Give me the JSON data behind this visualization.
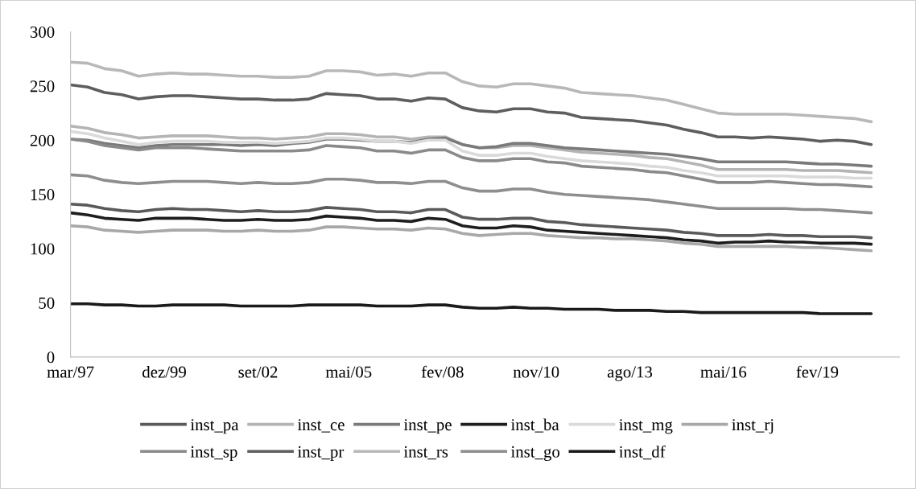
{
  "chart_data": {
    "type": "line",
    "x": [
      "1997-03",
      "1997-09",
      "1998-03",
      "1998-09",
      "1999-03",
      "1999-09",
      "2000-03",
      "2000-09",
      "2001-03",
      "2001-09",
      "2002-03",
      "2002-09",
      "2003-03",
      "2003-09",
      "2004-03",
      "2004-09",
      "2005-03",
      "2005-09",
      "2006-03",
      "2006-09",
      "2007-03",
      "2007-09",
      "2008-03",
      "2008-09",
      "2009-03",
      "2009-09",
      "2010-03",
      "2010-09",
      "2011-03",
      "2011-09",
      "2012-03",
      "2012-09",
      "2013-03",
      "2013-09",
      "2014-03",
      "2014-09",
      "2015-03",
      "2015-09",
      "2016-03",
      "2016-09",
      "2017-03",
      "2017-09",
      "2018-03",
      "2018-09",
      "2019-03",
      "2019-09",
      "2020-03",
      "2020-09"
    ],
    "xlim": [
      "1997-03",
      "2021-07"
    ],
    "xticks": [
      {
        "value": "1997-03",
        "label": "mar/97"
      },
      {
        "value": "1999-12",
        "label": "dez/99"
      },
      {
        "value": "2002-09",
        "label": "set/02"
      },
      {
        "value": "2005-05",
        "label": "mai/05"
      },
      {
        "value": "2008-02",
        "label": "fev/08"
      },
      {
        "value": "2010-11",
        "label": "nov/10"
      },
      {
        "value": "2013-08",
        "label": "ago/13"
      },
      {
        "value": "2016-05",
        "label": "mai/16"
      },
      {
        "value": "2019-02",
        "label": "fev/19"
      }
    ],
    "ylim": [
      0,
      300
    ],
    "yticks": [
      0,
      50,
      100,
      150,
      200,
      250,
      300
    ],
    "grid": false,
    "legend": "bottom",
    "marker": "none",
    "line_style": "solid",
    "series": [
      {
        "name": "inst_pa",
        "color": "#5a5a5a",
        "values": [
          141,
          140,
          137,
          135,
          134,
          136,
          137,
          136,
          136,
          135,
          134,
          135,
          134,
          134,
          135,
          138,
          137,
          136,
          134,
          134,
          133,
          136,
          136,
          129,
          127,
          127,
          128,
          128,
          125,
          124,
          122,
          121,
          120,
          119,
          118,
          117,
          115,
          114,
          112,
          112,
          112,
          113,
          112,
          112,
          111,
          111,
          111,
          110
        ]
      },
      {
        "name": "inst_ce",
        "color": "#b4b4b4",
        "values": [
          213,
          211,
          207,
          205,
          202,
          203,
          204,
          204,
          204,
          203,
          202,
          202,
          201,
          202,
          203,
          206,
          206,
          205,
          203,
          203,
          201,
          203,
          203,
          196,
          193,
          193,
          195,
          195,
          193,
          191,
          189,
          188,
          187,
          186,
          184,
          183,
          180,
          177,
          173,
          173,
          173,
          173,
          173,
          172,
          172,
          172,
          171,
          170
        ]
      },
      {
        "name": "inst_pe",
        "color": "#7a7a7a",
        "values": [
          201,
          200,
          197,
          195,
          193,
          195,
          196,
          196,
          196,
          196,
          195,
          196,
          195,
          197,
          198,
          201,
          201,
          200,
          199,
          199,
          198,
          201,
          202,
          196,
          193,
          194,
          197,
          197,
          195,
          193,
          192,
          191,
          190,
          189,
          188,
          187,
          185,
          183,
          180,
          180,
          180,
          180,
          180,
          179,
          178,
          178,
          177,
          176
        ]
      },
      {
        "name": "inst_ba",
        "color": "#1e1e1e",
        "values": [
          133,
          131,
          128,
          127,
          126,
          128,
          128,
          128,
          127,
          126,
          126,
          127,
          126,
          126,
          127,
          130,
          129,
          128,
          126,
          126,
          125,
          128,
          127,
          121,
          119,
          119,
          121,
          120,
          117,
          116,
          115,
          114,
          113,
          112,
          111,
          110,
          108,
          107,
          105,
          106,
          106,
          107,
          106,
          106,
          105,
          105,
          105,
          104
        ]
      },
      {
        "name": "inst_mg",
        "color": "#dadada",
        "values": [
          208,
          206,
          202,
          199,
          196,
          198,
          199,
          199,
          199,
          198,
          198,
          198,
          197,
          198,
          199,
          202,
          202,
          201,
          199,
          199,
          197,
          200,
          200,
          190,
          186,
          186,
          188,
          188,
          185,
          183,
          181,
          180,
          179,
          178,
          176,
          175,
          172,
          170,
          167,
          167,
          167,
          167,
          167,
          166,
          166,
          166,
          165,
          165
        ]
      },
      {
        "name": "inst_rj",
        "color": "#a8a8a8",
        "values": [
          121,
          120,
          117,
          116,
          115,
          116,
          117,
          117,
          117,
          116,
          116,
          117,
          116,
          116,
          117,
          120,
          120,
          119,
          118,
          118,
          117,
          119,
          118,
          114,
          112,
          113,
          114,
          114,
          112,
          111,
          110,
          110,
          109,
          109,
          108,
          107,
          105,
          104,
          102,
          102,
          102,
          102,
          102,
          101,
          101,
          100,
          99,
          98
        ]
      },
      {
        "name": "inst_sp",
        "color": "#8a8a8a",
        "values": [
          201,
          199,
          195,
          193,
          191,
          193,
          193,
          193,
          192,
          191,
          190,
          190,
          190,
          190,
          191,
          195,
          194,
          193,
          190,
          190,
          188,
          191,
          191,
          184,
          181,
          181,
          183,
          183,
          180,
          179,
          176,
          175,
          174,
          173,
          171,
          170,
          167,
          164,
          161,
          161,
          161,
          162,
          161,
          160,
          159,
          159,
          158,
          157
        ]
      },
      {
        "name": "inst_pr",
        "color": "#5e5e5e",
        "values": [
          251,
          249,
          244,
          242,
          238,
          240,
          241,
          241,
          240,
          239,
          238,
          238,
          237,
          237,
          238,
          243,
          242,
          241,
          238,
          238,
          236,
          239,
          238,
          230,
          227,
          226,
          229,
          229,
          226,
          225,
          221,
          220,
          219,
          218,
          216,
          214,
          210,
          207,
          203,
          203,
          202,
          203,
          202,
          201,
          199,
          200,
          199,
          196
        ]
      },
      {
        "name": "inst_rs",
        "color": "#b8b8b8",
        "values": [
          272,
          271,
          266,
          264,
          259,
          261,
          262,
          261,
          261,
          260,
          259,
          259,
          258,
          258,
          259,
          264,
          264,
          263,
          260,
          261,
          259,
          262,
          262,
          254,
          250,
          249,
          252,
          252,
          250,
          248,
          244,
          243,
          242,
          241,
          239,
          237,
          233,
          229,
          225,
          224,
          224,
          224,
          224,
          223,
          222,
          221,
          220,
          217
        ]
      },
      {
        "name": "inst_go",
        "color": "#8e8e8e",
        "values": [
          168,
          167,
          163,
          161,
          160,
          161,
          162,
          162,
          162,
          161,
          160,
          161,
          160,
          160,
          161,
          164,
          164,
          163,
          161,
          161,
          160,
          162,
          162,
          156,
          153,
          153,
          155,
          155,
          152,
          150,
          149,
          148,
          147,
          146,
          145,
          143,
          141,
          139,
          137,
          137,
          137,
          137,
          137,
          136,
          136,
          135,
          134,
          133
        ]
      },
      {
        "name": "inst_df",
        "color": "#1a1a1a",
        "values": [
          49,
          49,
          48,
          48,
          47,
          47,
          48,
          48,
          48,
          48,
          47,
          47,
          47,
          47,
          48,
          48,
          48,
          48,
          47,
          47,
          47,
          48,
          48,
          46,
          45,
          45,
          46,
          45,
          45,
          44,
          44,
          44,
          43,
          43,
          43,
          42,
          42,
          41,
          41,
          41,
          41,
          41,
          41,
          41,
          40,
          40,
          40,
          40
        ]
      }
    ]
  }
}
